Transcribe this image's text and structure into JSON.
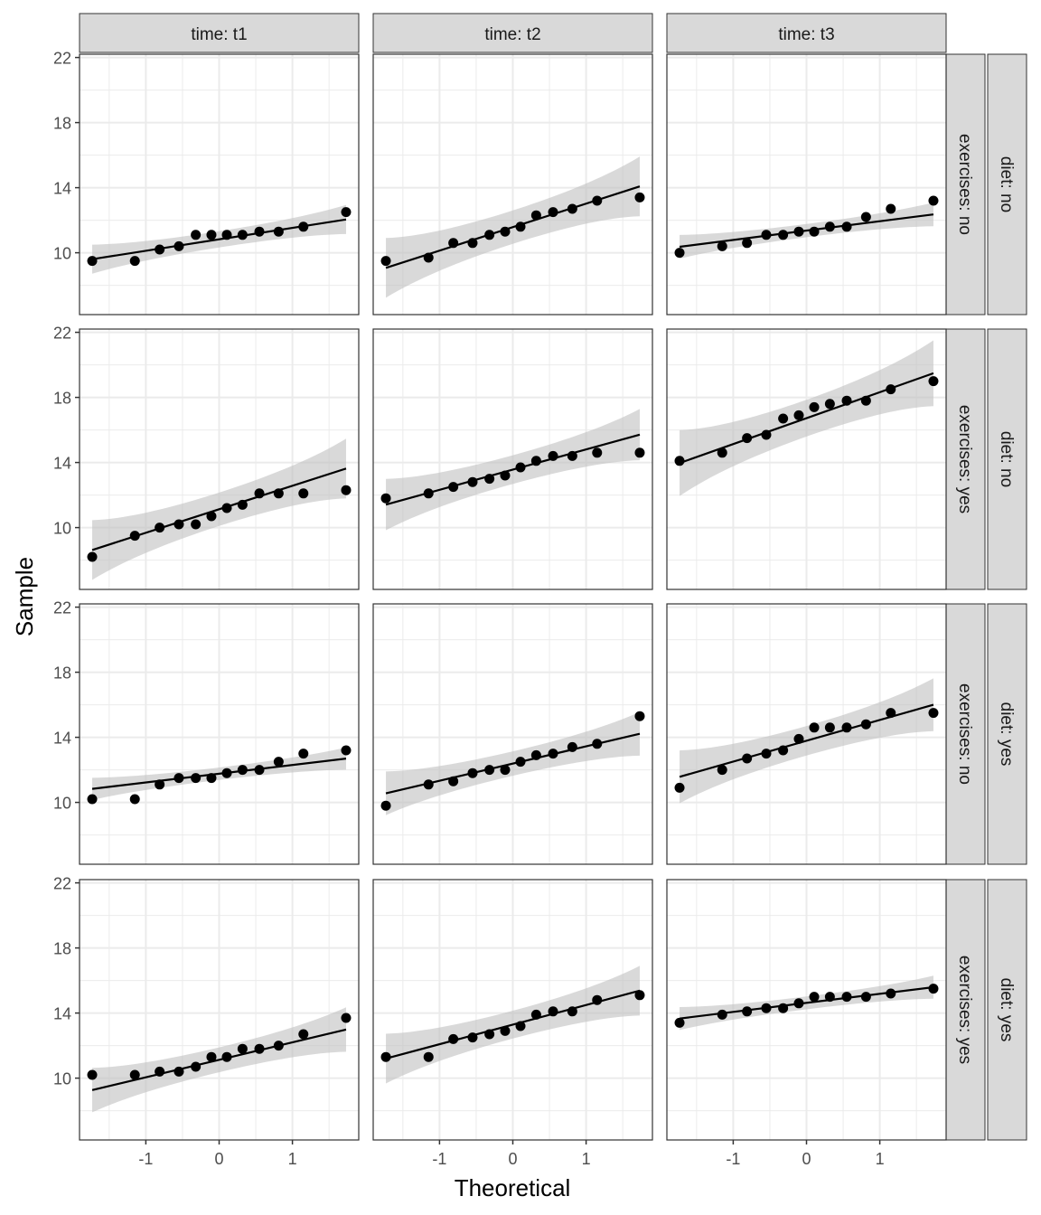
{
  "chart_data": {
    "type": "scatter",
    "subtype": "qq-plot-faceted",
    "xlabel": "Theoretical",
    "ylabel": "Sample",
    "xlim": [
      -1.905,
      1.905
    ],
    "ylim": [
      6.2,
      22.2
    ],
    "x_ticks": [
      -1,
      0,
      1
    ],
    "y_ticks": [
      10,
      14,
      18,
      22
    ],
    "grid": true,
    "col_strips": [
      "time: t1",
      "time: t2",
      "time: t3"
    ],
    "row_strips": [
      {
        "exercises": "exercises: no",
        "diet": "diet: no"
      },
      {
        "exercises": "exercises: yes",
        "diet": "diet: no"
      },
      {
        "exercises": "exercises: no",
        "diet": "diet: yes"
      },
      {
        "exercises": "exercises: yes",
        "diet": "diet: yes"
      }
    ],
    "theoretical_quantiles": [
      -1.732,
      -1.15,
      -0.812,
      -0.549,
      -0.319,
      -0.105,
      0.105,
      0.319,
      0.549,
      0.812,
      1.15,
      1.732
    ],
    "panels": [
      [
        [
          9.5,
          9.5,
          10.2,
          10.4,
          11.1,
          11.1,
          11.1,
          11.1,
          11.3,
          11.3,
          11.6,
          12.5
        ],
        [
          9.5,
          9.7,
          10.6,
          10.6,
          11.1,
          11.3,
          11.6,
          12.3,
          12.5,
          12.7,
          13.2,
          13.4
        ],
        [
          10.0,
          10.4,
          10.6,
          11.1,
          11.1,
          11.3,
          11.3,
          11.6,
          11.6,
          12.2,
          12.7,
          13.2
        ]
      ],
      [
        [
          8.2,
          9.5,
          10.0,
          10.2,
          10.2,
          10.7,
          11.2,
          11.4,
          12.1,
          12.1,
          12.1,
          12.3
        ],
        [
          11.8,
          12.1,
          12.5,
          12.8,
          13.0,
          13.2,
          13.7,
          14.1,
          14.4,
          14.4,
          14.6,
          14.6
        ],
        [
          14.1,
          14.6,
          15.5,
          15.7,
          16.7,
          16.9,
          17.4,
          17.6,
          17.8,
          17.8,
          18.5,
          19.0
        ]
      ],
      [
        [
          10.2,
          10.2,
          11.1,
          11.5,
          11.5,
          11.5,
          11.8,
          12.0,
          12.0,
          12.5,
          13.0,
          13.2
        ],
        [
          9.8,
          11.1,
          11.3,
          11.8,
          12.0,
          12.0,
          12.5,
          12.9,
          13.0,
          13.4,
          13.6,
          15.3
        ],
        [
          10.9,
          12.0,
          12.7,
          13.0,
          13.2,
          13.9,
          14.6,
          14.6,
          14.6,
          14.8,
          15.5,
          15.5
        ]
      ],
      [
        [
          10.2,
          10.2,
          10.4,
          10.4,
          10.7,
          11.3,
          11.3,
          11.8,
          11.8,
          12.0,
          12.7,
          13.7
        ],
        [
          11.3,
          11.3,
          12.4,
          12.5,
          12.7,
          12.9,
          13.2,
          13.9,
          14.1,
          14.1,
          14.8,
          15.1
        ],
        [
          13.4,
          13.9,
          14.1,
          14.3,
          14.3,
          14.6,
          15.0,
          15.0,
          15.0,
          15.0,
          15.2,
          15.5
        ]
      ]
    ],
    "colors": {
      "points": "#000000",
      "line": "#000000",
      "band": "#bfbfbf",
      "strip": "#d9d9d9",
      "grid": "#ebebeb"
    }
  }
}
